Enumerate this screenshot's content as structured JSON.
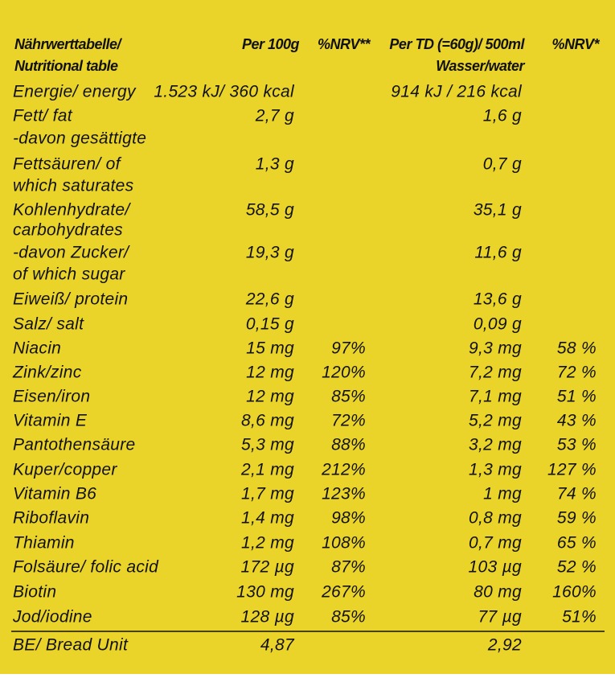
{
  "header": [
    [
      "Nährwerttabelle/",
      "Nutritional table"
    ],
    [
      "Per 100g"
    ],
    [
      "%NRV**"
    ],
    [
      "Per TD (=60g)/ 500ml",
      "Wasser/water"
    ],
    [
      "%NRV*"
    ]
  ],
  "table": {
    "rows": [
      [
        "Energie/ energy",
        "1.523 kJ/ 360 kcal",
        null,
        "914 kJ / 216 kcal",
        null
      ],
      [
        "Fett/ fat",
        "2,7 g",
        null,
        "1,6 g",
        null
      ],
      [
        "-davon gesättigte",
        null,
        null,
        null,
        null
      ],
      [
        " Fettsäuren/ of",
        "1,3 g",
        null,
        "0,7 g",
        null
      ],
      [
        "which saturates",
        null,
        null,
        null,
        null
      ],
      [
        "Kohlenhydrate/",
        "58,5 g",
        null,
        "35,1 g",
        null
      ],
      [
        "carbohydrates",
        null,
        null,
        null,
        null
      ],
      [
        "-davon Zucker/",
        "19,3 g",
        null,
        "11,6 g",
        null
      ],
      [
        "of which sugar",
        null,
        null,
        null,
        null
      ],
      [
        "Eiweiß/ protein",
        "22,6 g",
        null,
        "13,6 g",
        null
      ],
      [
        "Salz/ salt",
        "0,15 g",
        null,
        "0,09 g",
        null
      ],
      [
        "Niacin",
        "15 mg",
        "97%",
        "9,3 mg",
        "58 %"
      ],
      [
        "Zink/zinc",
        "12 mg",
        "120%",
        "7,2 mg",
        "72 %"
      ],
      [
        "Eisen/iron",
        "12 mg",
        "85%",
        "7,1 mg",
        "51 %"
      ],
      [
        "Vitamin E",
        "8,6 mg",
        "72%",
        "5,2 mg",
        "43 %"
      ],
      [
        "Pantothensäure",
        "5,3 mg",
        "88%",
        "3,2 mg",
        "53 %"
      ],
      [
        "Kuper/copper",
        "2,1 mg",
        "212%",
        "1,3 mg",
        "127 %"
      ],
      [
        "Vitamin B6",
        "1,7 mg",
        "123%",
        "1 mg",
        "74 %"
      ],
      [
        "Riboflavin",
        "1,4 mg",
        "98%",
        "0,8 mg",
        "59 %"
      ],
      [
        "Thiamin",
        "1,2 mg",
        "108%",
        "0,7 mg",
        "65 %"
      ],
      [
        "Folsäure/ folic acid",
        "172 µg",
        "87%",
        "103 µg",
        "52 %"
      ],
      [
        "Biotin",
        "130 mg",
        "267%",
        "80 mg",
        "160%"
      ],
      [
        "Jod/iodine",
        "128 µg",
        "85%",
        "77 µg",
        "51%"
      ],
      [
        "BE/ Bread Unit",
        "4,87",
        null,
        "2,92",
        null
      ]
    ]
  }
}
